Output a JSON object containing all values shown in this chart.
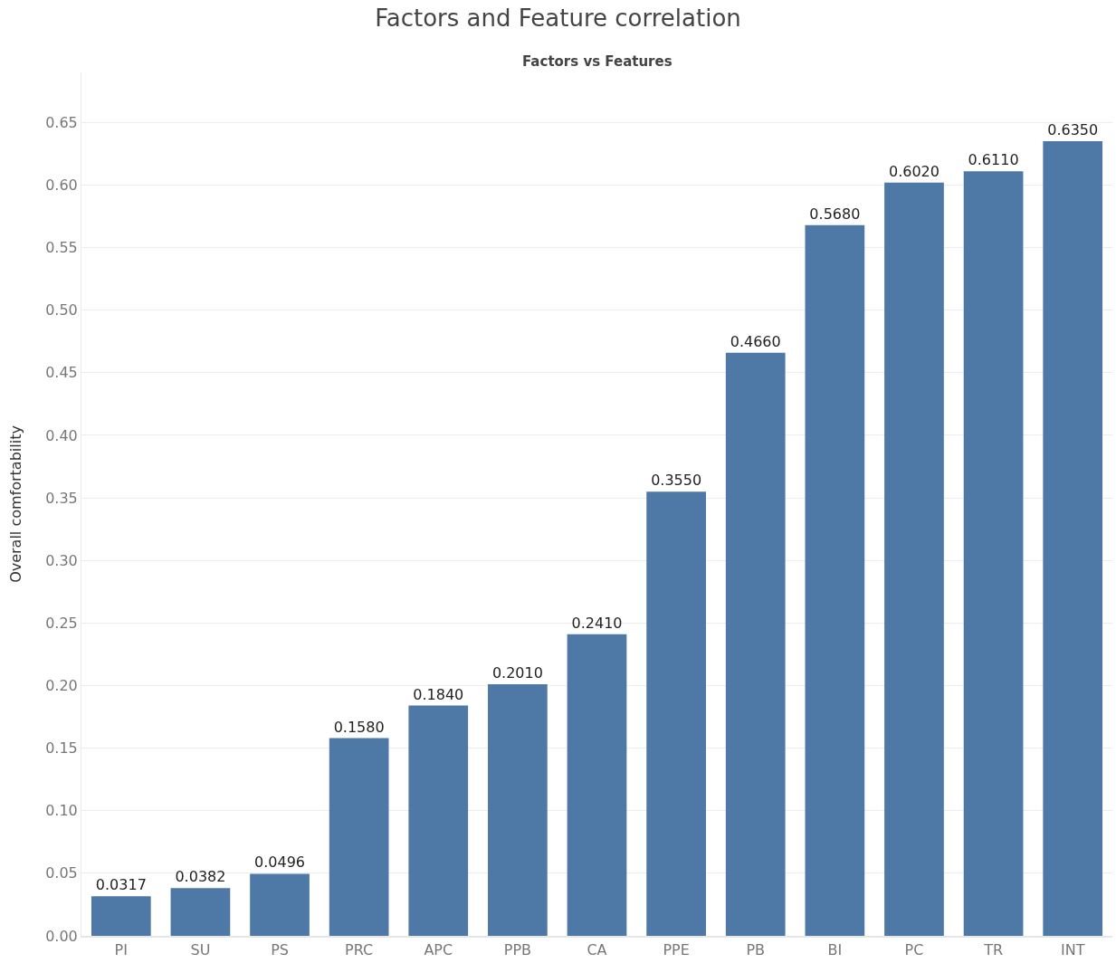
{
  "chart_data": {
    "type": "bar",
    "title": "Factors and Feature correlation",
    "subtitle": "Factors vs Features",
    "ylabel": "Overall comfortability",
    "categories": [
      "PI",
      "SU",
      "PS",
      "PRC",
      "APC",
      "PPB",
      "CA",
      "PPE",
      "PB",
      "BI",
      "PC",
      "TR",
      "INT"
    ],
    "values": [
      0.0317,
      0.0382,
      0.0496,
      0.158,
      0.184,
      0.201,
      0.241,
      0.355,
      0.466,
      0.568,
      0.602,
      0.611,
      0.635
    ],
    "value_labels": [
      "0.0317",
      "0.0382",
      "0.0496",
      "0.1580",
      "0.1840",
      "0.2010",
      "0.2410",
      "0.3550",
      "0.4660",
      "0.5680",
      "0.6020",
      "0.6110",
      "0.6350"
    ],
    "color": "#4e79a7",
    "ylim": [
      0,
      0.69
    ],
    "yticks": [
      {
        "value": 0,
        "label": "0.00"
      },
      0.05,
      {
        "value": 0.1,
        "label": "0.10"
      },
      0.15,
      {
        "value": 0.2,
        "label": "0.20"
      },
      0.25,
      {
        "value": 0.3,
        "label": "0.30"
      },
      0.35,
      {
        "value": 0.4,
        "label": "0.40"
      },
      0.45,
      {
        "value": 0.5,
        "label": "0.50"
      },
      0.55,
      {
        "value": 0.6,
        "label": "0.60"
      },
      0.65
    ],
    "grid": "y"
  }
}
